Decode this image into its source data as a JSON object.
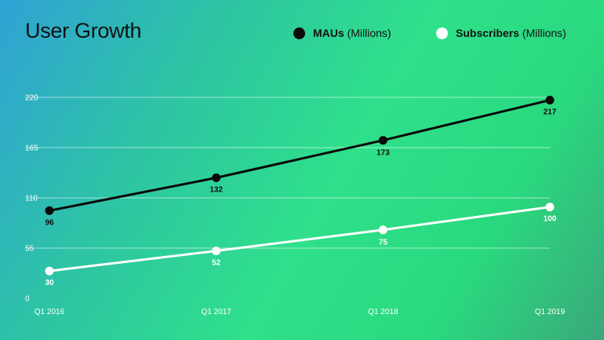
{
  "title": "User Growth",
  "legend": [
    {
      "name": "MAUs",
      "unit": "(Millions)",
      "color": "#0a0a0a"
    },
    {
      "name": "Subscribers",
      "unit": "(Millions)",
      "color": "#ffffff"
    }
  ],
  "chart_data": {
    "type": "line",
    "title": "User Growth",
    "x": [
      "Q1 2016",
      "Q1 2017",
      "Q1 2018",
      "Q1 2019"
    ],
    "yticks": [
      0,
      55,
      110,
      165,
      220
    ],
    "ylim": [
      0,
      220
    ],
    "grid": true,
    "legend_position": "top-right",
    "series": [
      {
        "name": "MAUs (Millions)",
        "values": [
          96,
          132,
          173,
          217
        ],
        "color": "#0a0a0a"
      },
      {
        "name": "Subscribers (Millions)",
        "values": [
          30,
          52,
          75,
          100
        ],
        "color": "#ffffff"
      }
    ]
  }
}
